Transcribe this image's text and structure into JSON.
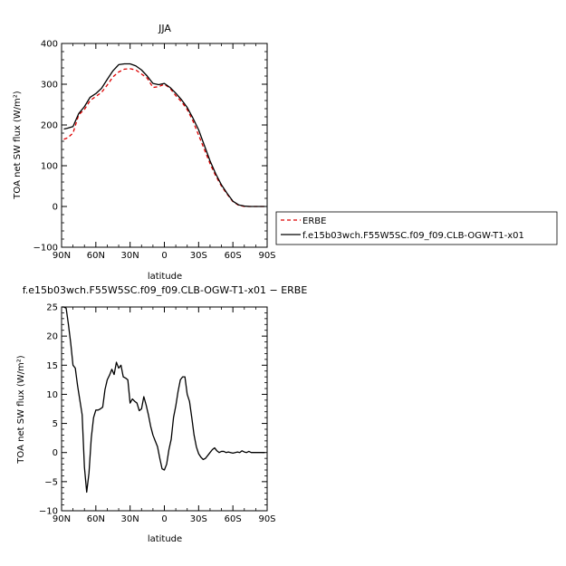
{
  "chart_data": [
    {
      "type": "line",
      "title": "JJA",
      "xlabel": "latitude",
      "ylabel": "TOA net SW flux (W/m²)",
      "xlim": [
        -90,
        90
      ],
      "ylim": [
        -100,
        400
      ],
      "x_ticks": [
        -90,
        -60,
        -30,
        0,
        30,
        60,
        90
      ],
      "x_tick_labels": [
        "90N",
        "60N",
        "30N",
        "0",
        "30S",
        "60S",
        "90S"
      ],
      "y_ticks": [
        -100,
        0,
        100,
        200,
        300,
        400
      ],
      "y_tick_labels": [
        "−100",
        "0",
        "100",
        "200",
        "300",
        "400"
      ],
      "legend_position": "right",
      "series": [
        {
          "name": "ERBE",
          "color": "#dd0000",
          "style": "dashed",
          "x": [
            -88,
            -85,
            -80,
            -75,
            -70,
            -65,
            -60,
            -55,
            -50,
            -45,
            -40,
            -35,
            -30,
            -25,
            -20,
            -15,
            -10,
            -5,
            0,
            5,
            10,
            15,
            20,
            25,
            30,
            35,
            40,
            45,
            50,
            55,
            60,
            65,
            70,
            75,
            80,
            85,
            88
          ],
          "y": [
            165,
            168,
            180,
            225,
            238,
            260,
            270,
            280,
            298,
            318,
            330,
            337,
            338,
            335,
            325,
            315,
            292,
            294,
            300,
            290,
            272,
            257,
            238,
            210,
            175,
            140,
            105,
            75,
            50,
            30,
            12,
            3,
            0,
            0,
            0,
            0,
            0
          ]
        },
        {
          "name": "f.e15b03wch.F55W5SC.f09_f09.CLB-OGW-T1-x01",
          "color": "#000000",
          "style": "solid",
          "x": [
            -88,
            -85,
            -80,
            -75,
            -70,
            -65,
            -60,
            -55,
            -50,
            -45,
            -40,
            -35,
            -30,
            -25,
            -20,
            -15,
            -10,
            -5,
            0,
            5,
            10,
            15,
            20,
            25,
            30,
            35,
            40,
            45,
            50,
            55,
            60,
            65,
            70,
            75,
            80,
            85,
            88
          ],
          "y": [
            190,
            192,
            196,
            228,
            245,
            268,
            277,
            290,
            312,
            333,
            348,
            350,
            350,
            345,
            335,
            320,
            302,
            299,
            302,
            292,
            278,
            262,
            243,
            217,
            188,
            150,
            112,
            80,
            53,
            32,
            13,
            4,
            1,
            0,
            0,
            0,
            0
          ]
        }
      ]
    },
    {
      "type": "line",
      "title": "f.e15b03wch.F55W5SC.f09_f09.CLB-OGW-T1-x01 − ERBE",
      "xlabel": "latitude",
      "ylabel": "TOA net SW flux (W/m²)",
      "xlim": [
        -90,
        90
      ],
      "ylim": [
        -10,
        25
      ],
      "x_ticks": [
        -90,
        -60,
        -30,
        0,
        30,
        60,
        90
      ],
      "x_tick_labels": [
        "90N",
        "60N",
        "30N",
        "0",
        "30S",
        "60S",
        "90S"
      ],
      "y_ticks": [
        -10,
        -5,
        0,
        5,
        10,
        15,
        20,
        25
      ],
      "y_tick_labels": [
        "−10",
        "−5",
        "0",
        "5",
        "10",
        "15",
        "20",
        "25"
      ],
      "series": [
        {
          "color": "#000000",
          "style": "solid",
          "x": [
            -90,
            -88,
            -86,
            -84,
            -82,
            -80,
            -78,
            -76,
            -74,
            -72,
            -70,
            -68,
            -66,
            -64,
            -62,
            -60,
            -58,
            -56,
            -54,
            -52,
            -50,
            -48,
            -46,
            -44,
            -42,
            -40,
            -38,
            -36,
            -34,
            -32,
            -30,
            -28,
            -26,
            -24,
            -22,
            -20,
            -18,
            -16,
            -14,
            -12,
            -10,
            -8,
            -6,
            -4,
            -2,
            0,
            2,
            4,
            6,
            8,
            10,
            12,
            14,
            16,
            18,
            20,
            22,
            24,
            26,
            28,
            30,
            32,
            34,
            36,
            38,
            40,
            42,
            44,
            46,
            48,
            50,
            52,
            54,
            56,
            58,
            60,
            62,
            64,
            66,
            68,
            70,
            72,
            74,
            76,
            78,
            80,
            82,
            84,
            86,
            88
          ],
          "y": [
            25,
            25,
            24.8,
            22,
            18.8,
            15,
            14.5,
            11.5,
            9,
            6.5,
            -2.5,
            -6.8,
            -3.5,
            2.5,
            6,
            7.3,
            7.3,
            7.5,
            7.8,
            10.8,
            12.5,
            13.3,
            14.3,
            13.4,
            15.5,
            14.5,
            15,
            13,
            12.8,
            12.5,
            8.5,
            9.2,
            8.8,
            8.5,
            7.2,
            7.5,
            9.6,
            8.2,
            6.5,
            4.5,
            3,
            2,
            1,
            -1,
            -2.8,
            -3,
            -2,
            0.5,
            2.3,
            6,
            8,
            10.5,
            12.5,
            13,
            13,
            10,
            8.8,
            6,
            3,
            1,
            -0.2,
            -0.8,
            -1.2,
            -1,
            -0.5,
            0,
            0.5,
            0.8,
            0.3,
            0,
            0.2,
            0.2,
            0,
            0.1,
            0,
            -0.1,
            0,
            0.1,
            0,
            0.3,
            0.1,
            0,
            0.2,
            0,
            0,
            0,
            0,
            0,
            0,
            0
          ]
        }
      ]
    }
  ]
}
